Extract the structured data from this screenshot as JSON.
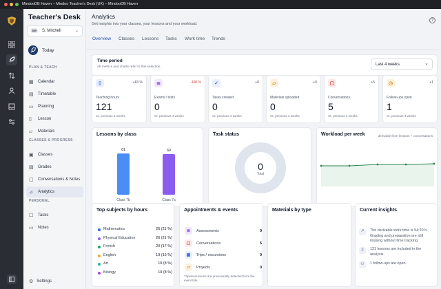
{
  "window": {
    "title": "MindooDB Haven – Mindoo Teacher's Desk (UK) – MindooDB Haven"
  },
  "colors": {
    "accent": "#2f6fd6",
    "green_line": "#27864e",
    "bar_blue": "#4a8ef5",
    "bar_purple": "#8a5cf0"
  },
  "rail": {
    "icons": [
      "app-logo-icon",
      "grid-icon",
      "rocket-icon",
      "arrows-icon",
      "users-icon",
      "inbox-icon",
      "sliders-icon",
      "panel-icon"
    ]
  },
  "sidebar": {
    "brand": "Teacher's Desk",
    "user_initials": "SM",
    "user_name": "S. Mitchell",
    "today": "Today",
    "sec_plan": "PLAN & TEACH",
    "sec_classes": "CLASSES & PROGRESS",
    "sec_personal": "PERSONAL",
    "items": [
      {
        "label": "Calendar",
        "icon": "calendar-icon"
      },
      {
        "label": "Timetable",
        "icon": "table-icon"
      },
      {
        "label": "Planning",
        "icon": "clipboard-icon"
      },
      {
        "label": "Lesson",
        "icon": "book-icon"
      },
      {
        "label": "Materials",
        "icon": "folder-icon"
      },
      {
        "label": "Classes",
        "icon": "class-icon"
      },
      {
        "label": "Grades",
        "icon": "grades-icon"
      },
      {
        "label": "Conversations & Notes",
        "icon": "chat-icon"
      },
      {
        "label": "Analytics",
        "icon": "chart-icon"
      },
      {
        "label": "Tasks",
        "icon": "tasks-icon"
      },
      {
        "label": "Notes",
        "icon": "notes-icon"
      }
    ],
    "settings": "Settings"
  },
  "header": {
    "title": "Analytics",
    "subtitle": "Get insights into your classes, your lessons and your workload."
  },
  "tabs": [
    "Overview",
    "Classes",
    "Lessons",
    "Tasks",
    "Work time",
    "Trends"
  ],
  "time_period": {
    "label": "Time period",
    "desc": "All metrics and charts refer to this selection.",
    "value": "Last 4 weeks"
  },
  "stats": [
    {
      "label": "Teaching hours",
      "value": "121",
      "delta": "+83 %",
      "sub": "vs. previous 4 weeks",
      "icon": "book-icon",
      "color": "#3b6fd1",
      "bg": "#e8efff"
    },
    {
      "label": "Exams / tests",
      "value": "0",
      "delta": "-100 %",
      "sub": "vs. previous 4 weeks",
      "icon": "exam-icon",
      "color": "#8a4cd6",
      "bg": "#f1e8fd"
    },
    {
      "label": "Tasks created",
      "value": "0",
      "delta": "+0",
      "sub": "vs. previous 4 weeks",
      "icon": "check-icon",
      "color": "#3b6fd1",
      "bg": "#e8efff"
    },
    {
      "label": "Materials uploaded",
      "value": "0",
      "delta": "+0",
      "sub": "vs. previous 4 weeks",
      "icon": "folder-icon",
      "color": "#d08a1b",
      "bg": "#fdf1dd"
    },
    {
      "label": "Conversations",
      "value": "5",
      "delta": "+5",
      "sub": "vs. previous 4 weeks",
      "icon": "chat-icon",
      "color": "#d23b3b",
      "bg": "#fde8e8"
    },
    {
      "label": "Follow-ups open",
      "value": "1",
      "delta": "+1",
      "sub": "vs. previous 4 weeks",
      "icon": "clock-icon",
      "color": "#d08a1b",
      "bg": "#fdf1dd"
    }
  ],
  "lessons_by_class": {
    "title": "Lessons by class"
  },
  "task_status": {
    "title": "Task status",
    "total": "0",
    "total_label": "Total"
  },
  "workload": {
    "title": "Workload per week",
    "note": "derivable from lessons + conversations"
  },
  "chart_data": [
    {
      "type": "bar",
      "title": "Lessons by class",
      "categories": [
        "Class 7b",
        "Class 7a"
      ],
      "values": [
        61,
        60
      ],
      "ylim": [
        0,
        61
      ]
    },
    {
      "type": "pie",
      "title": "Task status",
      "values": [
        0
      ]
    },
    {
      "type": "line",
      "title": "Workload per week",
      "values": [
        30,
        30,
        32,
        32,
        33
      ]
    }
  ],
  "top_subjects": {
    "title": "Top subjects by hours",
    "items": [
      {
        "name": "Mathematics",
        "value": "26 (21 %)",
        "color": "#2a6bd4"
      },
      {
        "name": "Physical Education",
        "value": "26 (21 %)",
        "color": "#8a5cf0"
      },
      {
        "name": "French",
        "value": "20 (17 %)",
        "color": "#22a06b"
      },
      {
        "name": "English",
        "value": "19 (16 %)",
        "color": "#f0a532"
      },
      {
        "name": "Art",
        "value": "10 (8 %)",
        "color": "#2bb3a3"
      },
      {
        "name": "Biology",
        "value": "10 (8 %)",
        "color": "#a44cd9"
      }
    ]
  },
  "appointments": {
    "title": "Appointments & events",
    "items": [
      {
        "name": "Assessments",
        "value": "0",
        "color": "#8a4cd6",
        "bg": "#f1e8fd"
      },
      {
        "name": "Conversations",
        "value": "5",
        "color": "#d23b3b",
        "bg": "#fde8e8"
      },
      {
        "name": "Trips / excursions",
        "value": "0",
        "color": "#3b6fd1",
        "bg": "#e8efff"
      },
      {
        "name": "Projects",
        "value": "0",
        "color": "#d08a1b",
        "bg": "#fdf1dd"
      }
    ],
    "note": "Trips/excursions are provisionally detected from the event title."
  },
  "materials_by_type": {
    "title": "Materials by type"
  },
  "insights": {
    "title": "Current insights",
    "items": [
      {
        "text": "The derivable work time is 94:20 h. Grading and preparation are still missing without time tracking.",
        "icon": "trend-icon"
      },
      {
        "text": "121 lessons are included in the analysis.",
        "icon": "book-icon"
      },
      {
        "text": "1 follow-ups are open.",
        "icon": "people-icon"
      }
    ]
  }
}
